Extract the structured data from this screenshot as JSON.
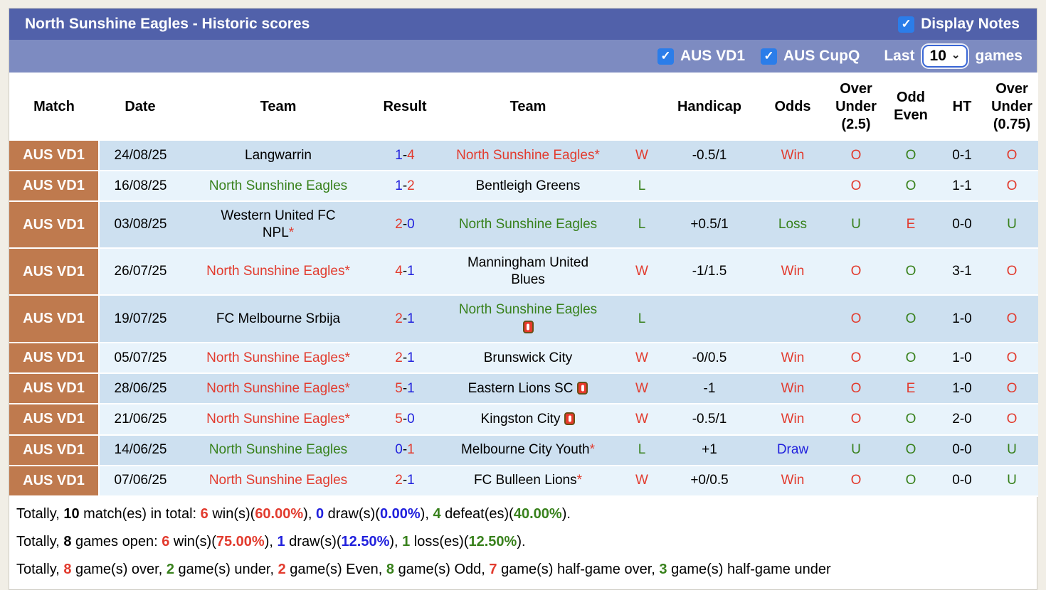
{
  "title_bar": {
    "title": "North Sunshine Eagles - Historic scores",
    "display_notes_label": "Display Notes",
    "display_notes_checked": true
  },
  "filter_bar": {
    "league_filters": [
      {
        "label": "AUS VD1",
        "checked": true
      },
      {
        "label": "AUS CupQ",
        "checked": true
      }
    ],
    "last_label": "Last",
    "games_count": "10",
    "games_label": "games"
  },
  "icons": {
    "check": "✓",
    "chevron_down": "⌄",
    "red_card": "red-card"
  },
  "colors": {
    "title_bar": "#5161aa",
    "filter_bar": "#7d8bc1",
    "match_cell_orange": "#bf7a4e",
    "row_blue": "#cde0f0",
    "row_light": "#e8f3fb",
    "win_red": "#e23b2e",
    "loss_green": "#38811c",
    "draw_blue": "#2121dd",
    "checkbox_blue": "#2b7de9"
  },
  "table": {
    "headers": [
      "Match",
      "Date",
      "Team",
      "Result",
      "Team",
      "",
      "Handicap",
      "Odds",
      "Over\nUnder\n(2.5)",
      "Odd\nEven",
      "HT",
      "Over\nUnder\n(0.75)"
    ],
    "rows": [
      {
        "league": "AUS VD1",
        "date": "24/08/25",
        "home": {
          "name": "Langwarrin",
          "color": "black",
          "star": false,
          "card": false,
          "card_newline": false
        },
        "score": {
          "home": "1",
          "away": "4",
          "home_color": "blue",
          "away_color": "red"
        },
        "away": {
          "name": "North Sunshine Eagles",
          "color": "red",
          "star": true,
          "card": false,
          "card_newline": false
        },
        "wl": {
          "text": "W",
          "color": "red"
        },
        "handicap": "-0.5/1",
        "odds": {
          "text": "Win",
          "color": "red"
        },
        "ou25": {
          "text": "O",
          "color": "red"
        },
        "oddeven": {
          "text": "O",
          "color": "green"
        },
        "ht": "0-1",
        "ou075": {
          "text": "O",
          "color": "red"
        }
      },
      {
        "league": "AUS VD1",
        "date": "16/08/25",
        "home": {
          "name": "North Sunshine Eagles",
          "color": "green",
          "star": false,
          "card": false,
          "card_newline": false
        },
        "score": {
          "home": "1",
          "away": "2",
          "home_color": "blue",
          "away_color": "red"
        },
        "away": {
          "name": "Bentleigh Greens",
          "color": "black",
          "star": false,
          "card": false,
          "card_newline": false
        },
        "wl": {
          "text": "L",
          "color": "green"
        },
        "handicap": "",
        "odds": {
          "text": "",
          "color": "black"
        },
        "ou25": {
          "text": "O",
          "color": "red"
        },
        "oddeven": {
          "text": "O",
          "color": "green"
        },
        "ht": "1-1",
        "ou075": {
          "text": "O",
          "color": "red"
        }
      },
      {
        "league": "AUS VD1",
        "date": "03/08/25",
        "home": {
          "name": "Western United FC\nNPL",
          "color": "black",
          "star": true,
          "card": false,
          "card_newline": false
        },
        "score": {
          "home": "2",
          "away": "0",
          "home_color": "red",
          "away_color": "blue"
        },
        "away": {
          "name": "North Sunshine Eagles",
          "color": "green",
          "star": false,
          "card": false,
          "card_newline": false
        },
        "wl": {
          "text": "L",
          "color": "green"
        },
        "handicap": "+0.5/1",
        "odds": {
          "text": "Loss",
          "color": "green"
        },
        "ou25": {
          "text": "U",
          "color": "green"
        },
        "oddeven": {
          "text": "E",
          "color": "red"
        },
        "ht": "0-0",
        "ou075": {
          "text": "U",
          "color": "green"
        }
      },
      {
        "league": "AUS VD1",
        "date": "26/07/25",
        "home": {
          "name": "North Sunshine Eagles",
          "color": "red",
          "star": true,
          "card": false,
          "card_newline": false
        },
        "score": {
          "home": "4",
          "away": "1",
          "home_color": "red",
          "away_color": "blue"
        },
        "away": {
          "name": "Manningham United\nBlues",
          "color": "black",
          "star": false,
          "card": false,
          "card_newline": false
        },
        "wl": {
          "text": "W",
          "color": "red"
        },
        "handicap": "-1/1.5",
        "odds": {
          "text": "Win",
          "color": "red"
        },
        "ou25": {
          "text": "O",
          "color": "red"
        },
        "oddeven": {
          "text": "O",
          "color": "green"
        },
        "ht": "3-1",
        "ou075": {
          "text": "O",
          "color": "red"
        }
      },
      {
        "league": "AUS VD1",
        "date": "19/07/25",
        "home": {
          "name": "FC Melbourne Srbija",
          "color": "black",
          "star": false,
          "card": false,
          "card_newline": false
        },
        "score": {
          "home": "2",
          "away": "1",
          "home_color": "red",
          "away_color": "blue"
        },
        "away": {
          "name": "North Sunshine Eagles",
          "color": "green",
          "star": false,
          "card": true,
          "card_newline": true
        },
        "wl": {
          "text": "L",
          "color": "green"
        },
        "handicap": "",
        "odds": {
          "text": "",
          "color": "black"
        },
        "ou25": {
          "text": "O",
          "color": "red"
        },
        "oddeven": {
          "text": "O",
          "color": "green"
        },
        "ht": "1-0",
        "ou075": {
          "text": "O",
          "color": "red"
        }
      },
      {
        "league": "AUS VD1",
        "date": "05/07/25",
        "home": {
          "name": "North Sunshine Eagles",
          "color": "red",
          "star": true,
          "card": false,
          "card_newline": false
        },
        "score": {
          "home": "2",
          "away": "1",
          "home_color": "red",
          "away_color": "blue"
        },
        "away": {
          "name": "Brunswick City",
          "color": "black",
          "star": false,
          "card": false,
          "card_newline": false
        },
        "wl": {
          "text": "W",
          "color": "red"
        },
        "handicap": "-0/0.5",
        "odds": {
          "text": "Win",
          "color": "red"
        },
        "ou25": {
          "text": "O",
          "color": "red"
        },
        "oddeven": {
          "text": "O",
          "color": "green"
        },
        "ht": "1-0",
        "ou075": {
          "text": "O",
          "color": "red"
        }
      },
      {
        "league": "AUS VD1",
        "date": "28/06/25",
        "home": {
          "name": "North Sunshine Eagles",
          "color": "red",
          "star": true,
          "card": false,
          "card_newline": false
        },
        "score": {
          "home": "5",
          "away": "1",
          "home_color": "red",
          "away_color": "blue"
        },
        "away": {
          "name": "Eastern Lions SC",
          "color": "black",
          "star": false,
          "card": true,
          "card_newline": false
        },
        "wl": {
          "text": "W",
          "color": "red"
        },
        "handicap": "-1",
        "odds": {
          "text": "Win",
          "color": "red"
        },
        "ou25": {
          "text": "O",
          "color": "red"
        },
        "oddeven": {
          "text": "E",
          "color": "red"
        },
        "ht": "1-0",
        "ou075": {
          "text": "O",
          "color": "red"
        }
      },
      {
        "league": "AUS VD1",
        "date": "21/06/25",
        "home": {
          "name": "North Sunshine Eagles",
          "color": "red",
          "star": true,
          "card": false,
          "card_newline": false
        },
        "score": {
          "home": "5",
          "away": "0",
          "home_color": "red",
          "away_color": "blue"
        },
        "away": {
          "name": "Kingston City",
          "color": "black",
          "star": false,
          "card": true,
          "card_newline": false
        },
        "wl": {
          "text": "W",
          "color": "red"
        },
        "handicap": "-0.5/1",
        "odds": {
          "text": "Win",
          "color": "red"
        },
        "ou25": {
          "text": "O",
          "color": "red"
        },
        "oddeven": {
          "text": "O",
          "color": "green"
        },
        "ht": "2-0",
        "ou075": {
          "text": "O",
          "color": "red"
        }
      },
      {
        "league": "AUS VD1",
        "date": "14/06/25",
        "home": {
          "name": "North Sunshine Eagles",
          "color": "green",
          "star": false,
          "card": false,
          "card_newline": false
        },
        "score": {
          "home": "0",
          "away": "1",
          "home_color": "blue",
          "away_color": "red"
        },
        "away": {
          "name": "Melbourne City Youth",
          "color": "black",
          "star": true,
          "card": false,
          "card_newline": false
        },
        "wl": {
          "text": "L",
          "color": "green"
        },
        "handicap": "+1",
        "odds": {
          "text": "Draw",
          "color": "blue"
        },
        "ou25": {
          "text": "U",
          "color": "green"
        },
        "oddeven": {
          "text": "O",
          "color": "green"
        },
        "ht": "0-0",
        "ou075": {
          "text": "U",
          "color": "green"
        }
      },
      {
        "league": "AUS VD1",
        "date": "07/06/25",
        "home": {
          "name": "North Sunshine Eagles",
          "color": "red",
          "star": false,
          "card": false,
          "card_newline": false
        },
        "score": {
          "home": "2",
          "away": "1",
          "home_color": "red",
          "away_color": "blue"
        },
        "away": {
          "name": "FC Bulleen Lions",
          "color": "black",
          "star": true,
          "card": false,
          "card_newline": false
        },
        "wl": {
          "text": "W",
          "color": "red"
        },
        "handicap": "+0/0.5",
        "odds": {
          "text": "Win",
          "color": "red"
        },
        "ou25": {
          "text": "O",
          "color": "red"
        },
        "oddeven": {
          "text": "O",
          "color": "green"
        },
        "ht": "0-0",
        "ou075": {
          "text": "U",
          "color": "green"
        }
      }
    ]
  },
  "summary": {
    "lines": [
      {
        "segments": [
          {
            "t": "Totally, "
          },
          {
            "t": "10",
            "b": true
          },
          {
            "t": " match(es) in total: "
          },
          {
            "t": "6",
            "c": "red",
            "b": true
          },
          {
            "t": " win(s)("
          },
          {
            "t": "60.00%",
            "c": "red",
            "b": true
          },
          {
            "t": "), "
          },
          {
            "t": "0",
            "c": "blue",
            "b": true
          },
          {
            "t": " draw(s)("
          },
          {
            "t": "0.00%",
            "c": "blue",
            "b": true
          },
          {
            "t": "), "
          },
          {
            "t": "4",
            "c": "green",
            "b": true
          },
          {
            "t": " defeat(es)("
          },
          {
            "t": "40.00%",
            "c": "green",
            "b": true
          },
          {
            "t": ")."
          }
        ]
      },
      {
        "segments": [
          {
            "t": "Totally, "
          },
          {
            "t": "8",
            "b": true
          },
          {
            "t": " games open: "
          },
          {
            "t": "6",
            "c": "red",
            "b": true
          },
          {
            "t": " win(s)("
          },
          {
            "t": "75.00%",
            "c": "red",
            "b": true
          },
          {
            "t": "), "
          },
          {
            "t": "1",
            "c": "blue",
            "b": true
          },
          {
            "t": " draw(s)("
          },
          {
            "t": "12.50%",
            "c": "blue",
            "b": true
          },
          {
            "t": "), "
          },
          {
            "t": "1",
            "c": "green",
            "b": true
          },
          {
            "t": " loss(es)("
          },
          {
            "t": "12.50%",
            "c": "green",
            "b": true
          },
          {
            "t": ")."
          }
        ]
      },
      {
        "segments": [
          {
            "t": "Totally, "
          },
          {
            "t": "8",
            "c": "red",
            "b": true
          },
          {
            "t": " game(s) over, "
          },
          {
            "t": "2",
            "c": "green",
            "b": true
          },
          {
            "t": " game(s) under, "
          },
          {
            "t": "2",
            "c": "red",
            "b": true
          },
          {
            "t": " game(s) Even, "
          },
          {
            "t": "8",
            "c": "green",
            "b": true
          },
          {
            "t": " game(s) Odd, "
          },
          {
            "t": "7",
            "c": "red",
            "b": true
          },
          {
            "t": " game(s) half-game over, "
          },
          {
            "t": "3",
            "c": "green",
            "b": true
          },
          {
            "t": " game(s) half-game under"
          }
        ]
      }
    ]
  }
}
